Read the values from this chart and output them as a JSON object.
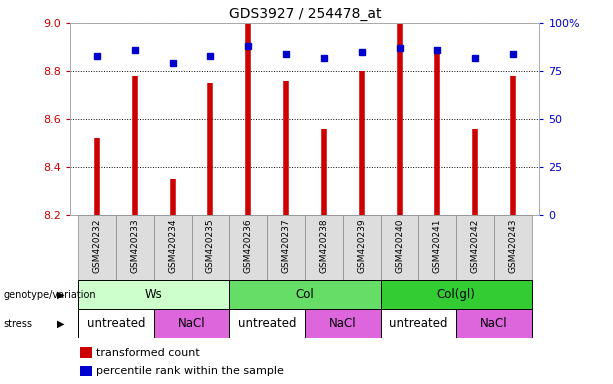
{
  "title": "GDS3927 / 254478_at",
  "samples": [
    "GSM420232",
    "GSM420233",
    "GSM420234",
    "GSM420235",
    "GSM420236",
    "GSM420237",
    "GSM420238",
    "GSM420239",
    "GSM420240",
    "GSM420241",
    "GSM420242",
    "GSM420243"
  ],
  "transformed_count": [
    8.52,
    8.78,
    8.35,
    8.75,
    9.0,
    8.76,
    8.56,
    8.8,
    9.0,
    8.9,
    8.56,
    8.78
  ],
  "percentile_rank": [
    83,
    86,
    79,
    83,
    88,
    84,
    82,
    85,
    87,
    86,
    82,
    84
  ],
  "y_min": 8.2,
  "y_max": 9.0,
  "y_ticks": [
    8.2,
    8.4,
    8.6,
    8.8,
    9.0
  ],
  "y2_ticks": [
    0,
    25,
    50,
    75,
    100
  ],
  "y2_tick_labels": [
    "0",
    "25",
    "50",
    "75",
    "100%"
  ],
  "bar_color": "#cc0000",
  "dot_color": "#0000cc",
  "bar_width": 0.25,
  "genotype_groups": [
    {
      "label": "Ws",
      "start": 0,
      "end": 3,
      "color": "#ccffcc"
    },
    {
      "label": "Col",
      "start": 4,
      "end": 7,
      "color": "#66dd66"
    },
    {
      "label": "Col(gl)",
      "start": 8,
      "end": 11,
      "color": "#33cc33"
    }
  ],
  "stress_groups": [
    {
      "label": "untreated",
      "start": 0,
      "end": 1,
      "color": "#ffffff"
    },
    {
      "label": "NaCl",
      "start": 2,
      "end": 3,
      "color": "#dd66dd"
    },
    {
      "label": "untreated",
      "start": 4,
      "end": 5,
      "color": "#ffffff"
    },
    {
      "label": "NaCl",
      "start": 6,
      "end": 7,
      "color": "#dd66dd"
    },
    {
      "label": "untreated",
      "start": 8,
      "end": 9,
      "color": "#ffffff"
    },
    {
      "label": "NaCl",
      "start": 10,
      "end": 11,
      "color": "#dd66dd"
    }
  ],
  "tick_label_color_left": "#cc0000",
  "tick_label_color_right": "#0000cc",
  "bar_legend_label": "transformed count",
  "dot_legend_label": "percentile rank within the sample"
}
